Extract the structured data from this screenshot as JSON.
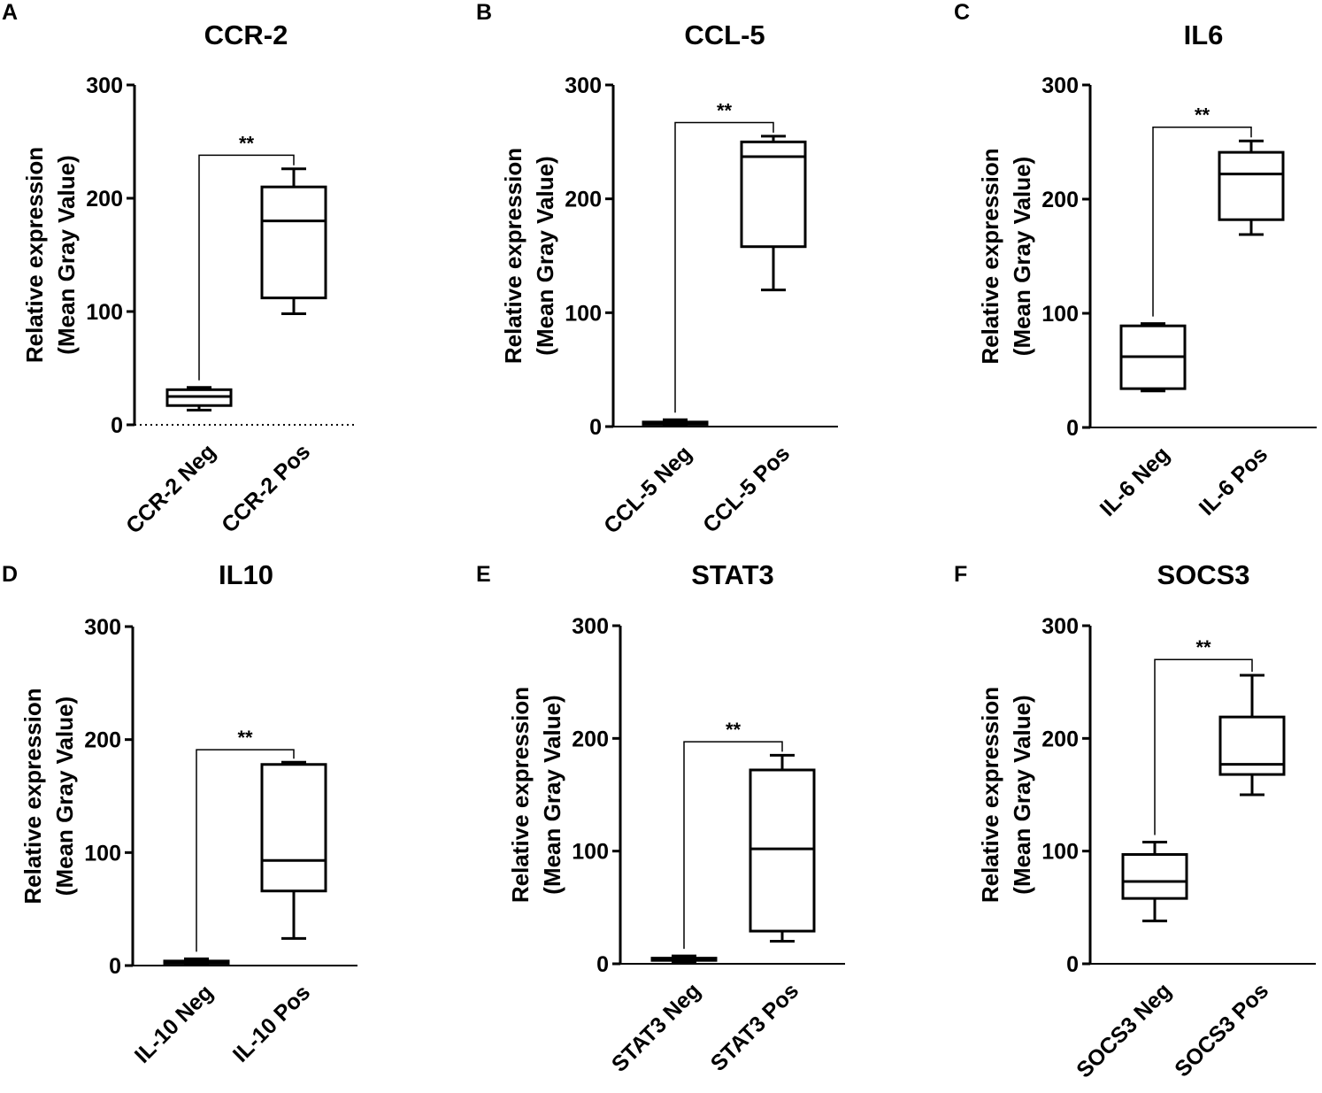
{
  "chart_data": [
    {
      "panel": "A",
      "type": "box",
      "title": "CCR-2",
      "ylabel": [
        "Relative expression",
        "(Mean Gray Value)"
      ],
      "ylim": [
        0,
        300
      ],
      "yticks": [
        0,
        100,
        200,
        300
      ],
      "dotted_x_axis": true,
      "categories": [
        "CCR-2 Neg",
        "CCR-2 Pos"
      ],
      "boxes": [
        {
          "min": 13,
          "q1": 17,
          "median": 25,
          "q3": 31,
          "max": 33
        },
        {
          "min": 98,
          "q1": 112,
          "median": 180,
          "q3": 210,
          "max": 226
        }
      ],
      "significance": {
        "label": "**",
        "y": 238
      }
    },
    {
      "panel": "B",
      "type": "box",
      "title": "CCL-5",
      "ylabel": [
        "Relative expression",
        "(Mean Gray Value)"
      ],
      "ylim": [
        0,
        300
      ],
      "yticks": [
        0,
        100,
        200,
        300
      ],
      "dotted_x_axis": false,
      "categories": [
        "CCL-5 Neg",
        "CCL-5 Pos"
      ],
      "boxes": [
        {
          "min": 1,
          "q1": 2,
          "median": 3,
          "q3": 4,
          "max": 6
        },
        {
          "min": 120,
          "q1": 158,
          "median": 237,
          "q3": 250,
          "max": 255
        }
      ],
      "significance": {
        "label": "**",
        "y": 267
      }
    },
    {
      "panel": "C",
      "type": "box",
      "title": "IL6",
      "ylabel": [
        "Relative expression",
        "(Mean Gray Value)"
      ],
      "ylim": [
        0,
        300
      ],
      "yticks": [
        0,
        100,
        200,
        300
      ],
      "dotted_x_axis": false,
      "categories": [
        "IL-6 Neg",
        "IL-6 Pos"
      ],
      "boxes": [
        {
          "min": 32,
          "q1": 34,
          "median": 62,
          "q3": 89,
          "max": 91
        },
        {
          "min": 169,
          "q1": 182,
          "median": 222,
          "q3": 241,
          "max": 251
        }
      ],
      "significance": {
        "label": "**",
        "y": 263
      }
    },
    {
      "panel": "D",
      "type": "box",
      "title": "IL10",
      "ylabel": [
        "Relative expression",
        "(Mean Gray Value)"
      ],
      "ylim": [
        0,
        300
      ],
      "yticks": [
        0,
        100,
        200,
        300
      ],
      "dotted_x_axis": false,
      "categories": [
        "IL-10 Neg",
        "IL-10 Pos"
      ],
      "boxes": [
        {
          "min": 1,
          "q1": 2,
          "median": 3,
          "q3": 4,
          "max": 6
        },
        {
          "min": 24,
          "q1": 66,
          "median": 93,
          "q3": 178,
          "max": 180
        }
      ],
      "significance": {
        "label": "**",
        "y": 191
      }
    },
    {
      "panel": "E",
      "type": "box",
      "title": "STAT3",
      "ylabel": [
        "Relative expression",
        "(Mean Gray Value)"
      ],
      "ylim": [
        0,
        300
      ],
      "yticks": [
        0,
        100,
        200,
        300
      ],
      "dotted_x_axis": false,
      "categories": [
        "STAT3 Neg",
        "STAT3 Pos"
      ],
      "boxes": [
        {
          "min": 2,
          "q1": 3,
          "median": 4,
          "q3": 5,
          "max": 7
        },
        {
          "min": 20,
          "q1": 29,
          "median": 102,
          "q3": 172,
          "max": 185
        }
      ],
      "significance": {
        "label": "**",
        "y": 197
      }
    },
    {
      "panel": "F",
      "type": "box",
      "title": "SOCS3",
      "ylabel": [
        "Relative expression",
        "(Mean Gray Value)"
      ],
      "ylim": [
        0,
        300
      ],
      "yticks": [
        0,
        100,
        200,
        300
      ],
      "dotted_x_axis": false,
      "categories": [
        "SOCS3 Neg",
        "SOCS3 Pos"
      ],
      "boxes": [
        {
          "min": 38,
          "q1": 58,
          "median": 73,
          "q3": 97,
          "max": 108
        },
        {
          "min": 150,
          "q1": 168,
          "median": 177,
          "q3": 219,
          "max": 256
        }
      ],
      "significance": {
        "label": "**",
        "y": 270
      }
    }
  ]
}
